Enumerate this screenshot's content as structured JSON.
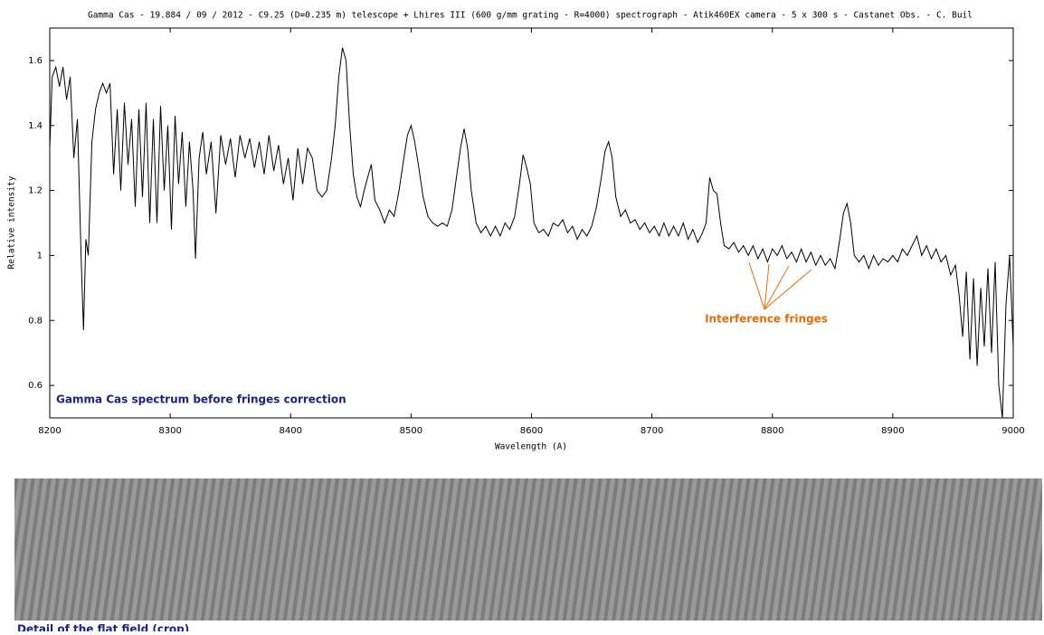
{
  "chart_data": {
    "type": "line",
    "title": "Gamma Cas - 19.884 / 09 / 2012 - C9.25 (D=0.235 m) telescope + Lhires III (600 g/mm grating - R=4000)  spectrograph - Atik460EX camera - 5 x 300 s - Castanet Obs. - C. Buil",
    "subtitle": "Gamma Cas spectrum before fringes correction",
    "annotation": "Interference fringes",
    "x_label": "Wavelength (A)",
    "y_label": "Relative intensity",
    "color": "#000000",
    "xlim": [
      8200,
      9000
    ],
    "ylim": [
      0.5,
      1.7
    ],
    "xticks": [
      8200,
      8300,
      8400,
      8500,
      8600,
      8700,
      8800,
      8900,
      9000
    ],
    "yticks": [
      0.6,
      0.8,
      1,
      1.2,
      1.4,
      1.6
    ],
    "x": [
      8200,
      8202,
      8205,
      8208,
      8211,
      8214,
      8217,
      8220,
      8223,
      8226,
      8228,
      8230,
      8232,
      8235,
      8238,
      8241,
      8244,
      8247,
      8250,
      8253,
      8256,
      8259,
      8262,
      8265,
      8268,
      8271,
      8274,
      8277,
      8280,
      8283,
      8286,
      8289,
      8292,
      8295,
      8298,
      8301,
      8304,
      8307,
      8310,
      8313,
      8316,
      8319,
      8321,
      8324,
      8327,
      8330,
      8334,
      8338,
      8342,
      8346,
      8350,
      8354,
      8358,
      8362,
      8366,
      8370,
      8374,
      8378,
      8382,
      8386,
      8390,
      8394,
      8398,
      8402,
      8406,
      8410,
      8414,
      8418,
      8422,
      8426,
      8430,
      8434,
      8437,
      8440,
      8443,
      8446,
      8449,
      8452,
      8455,
      8458,
      8461,
      8464,
      8467,
      8470,
      8474,
      8478,
      8482,
      8486,
      8490,
      8494,
      8497,
      8500,
      8503,
      8506,
      8510,
      8514,
      8518,
      8522,
      8526,
      8530,
      8534,
      8538,
      8541,
      8544,
      8547,
      8550,
      8554,
      8558,
      8562,
      8566,
      8570,
      8574,
      8578,
      8582,
      8586,
      8590,
      8593,
      8596,
      8599,
      8602,
      8606,
      8610,
      8614,
      8618,
      8622,
      8626,
      8630,
      8634,
      8638,
      8642,
      8646,
      8650,
      8654,
      8658,
      8661,
      8664,
      8667,
      8670,
      8674,
      8678,
      8682,
      8686,
      8690,
      8694,
      8698,
      8702,
      8706,
      8710,
      8714,
      8718,
      8722,
      8726,
      8730,
      8734,
      8738,
      8742,
      8745,
      8748,
      8751,
      8754,
      8757,
      8760,
      8764,
      8768,
      8772,
      8776,
      8780,
      8784,
      8788,
      8792,
      8796,
      8800,
      8804,
      8808,
      8812,
      8816,
      8820,
      8824,
      8828,
      8832,
      8836,
      8840,
      8844,
      8848,
      8852,
      8856,
      8859,
      8862,
      8865,
      8868,
      8872,
      8876,
      8880,
      8884,
      8888,
      8892,
      8896,
      8900,
      8904,
      8908,
      8912,
      8916,
      8920,
      8924,
      8928,
      8932,
      8936,
      8940,
      8944,
      8948,
      8952,
      8955,
      8958,
      8961,
      8964,
      8967,
      8970,
      8973,
      8976,
      8979,
      8982,
      8985,
      8988,
      8991,
      8994,
      8997,
      9000
    ],
    "values": [
      1.33,
      1.55,
      1.58,
      1.52,
      1.58,
      1.48,
      1.55,
      1.3,
      1.42,
      1.0,
      0.77,
      1.05,
      1.0,
      1.35,
      1.45,
      1.5,
      1.53,
      1.5,
      1.53,
      1.25,
      1.45,
      1.2,
      1.47,
      1.28,
      1.42,
      1.15,
      1.45,
      1.18,
      1.47,
      1.1,
      1.42,
      1.1,
      1.46,
      1.2,
      1.4,
      1.08,
      1.43,
      1.22,
      1.38,
      1.15,
      1.35,
      1.2,
      0.99,
      1.3,
      1.38,
      1.25,
      1.35,
      1.13,
      1.37,
      1.28,
      1.36,
      1.24,
      1.37,
      1.3,
      1.36,
      1.27,
      1.35,
      1.25,
      1.37,
      1.26,
      1.34,
      1.22,
      1.3,
      1.17,
      1.33,
      1.22,
      1.33,
      1.3,
      1.2,
      1.18,
      1.2,
      1.3,
      1.4,
      1.55,
      1.64,
      1.6,
      1.4,
      1.25,
      1.18,
      1.15,
      1.2,
      1.24,
      1.28,
      1.17,
      1.14,
      1.1,
      1.14,
      1.12,
      1.2,
      1.3,
      1.37,
      1.4,
      1.35,
      1.28,
      1.18,
      1.12,
      1.1,
      1.09,
      1.1,
      1.09,
      1.14,
      1.25,
      1.33,
      1.39,
      1.33,
      1.2,
      1.1,
      1.07,
      1.09,
      1.06,
      1.09,
      1.06,
      1.1,
      1.08,
      1.12,
      1.22,
      1.31,
      1.27,
      1.22,
      1.1,
      1.07,
      1.08,
      1.06,
      1.1,
      1.09,
      1.11,
      1.07,
      1.09,
      1.05,
      1.08,
      1.06,
      1.09,
      1.15,
      1.24,
      1.32,
      1.35,
      1.3,
      1.18,
      1.12,
      1.14,
      1.1,
      1.11,
      1.08,
      1.1,
      1.07,
      1.09,
      1.06,
      1.1,
      1.06,
      1.09,
      1.06,
      1.1,
      1.05,
      1.08,
      1.04,
      1.07,
      1.1,
      1.24,
      1.2,
      1.19,
      1.1,
      1.03,
      1.02,
      1.04,
      1.01,
      1.03,
      1.0,
      1.03,
      0.99,
      1.02,
      0.98,
      1.02,
      1.0,
      1.03,
      0.99,
      1.01,
      0.98,
      1.02,
      0.98,
      1.01,
      0.97,
      1.0,
      0.97,
      0.99,
      0.96,
      1.05,
      1.13,
      1.16,
      1.1,
      1.0,
      0.98,
      1.0,
      0.96,
      1.0,
      0.97,
      0.99,
      0.98,
      1.0,
      0.98,
      1.02,
      1.0,
      1.03,
      1.06,
      1.0,
      1.03,
      0.99,
      1.02,
      0.98,
      1.0,
      0.94,
      0.97,
      0.88,
      0.75,
      0.95,
      0.68,
      0.93,
      0.66,
      0.9,
      0.72,
      0.96,
      0.7,
      0.98,
      0.6,
      0.5,
      0.85,
      1.0,
      0.72
    ]
  },
  "image_caption": "Detail of the flat field (crop)"
}
